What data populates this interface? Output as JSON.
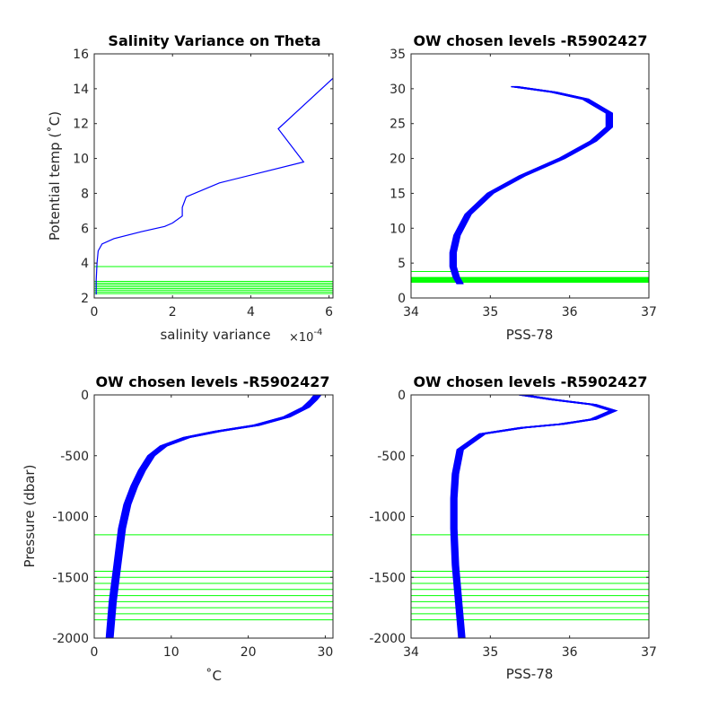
{
  "colors": {
    "profile": "#0000ff",
    "levels": "#00ff00",
    "axes": "#262626"
  },
  "chart_data": [
    {
      "type": "line",
      "title": "Salinity Variance on Theta",
      "xlabel": "salinity variance",
      "x_exponent_label": "×10",
      "x_exponent_power": "-4",
      "ylabel": "Potential temp (˚C)",
      "xlim": [
        0,
        6.1
      ],
      "ylim": [
        2,
        16
      ],
      "xticks": [
        0,
        2,
        4,
        6
      ],
      "xtick_labels": [
        "0",
        "2",
        "4",
        "6"
      ],
      "yticks": [
        2,
        4,
        6,
        8,
        10,
        12,
        14,
        16
      ],
      "ytick_labels": [
        "2",
        "4",
        "6",
        "8",
        "10",
        "12",
        "14",
        "16"
      ],
      "series": [
        {
          "x": [
            0.05,
            0.05,
            0.07,
            0.1,
            0.2,
            0.5,
            1.2,
            1.8,
            2.0,
            2.25,
            2.25,
            2.35,
            3.2,
            5.35,
            4.7,
            6.1
          ],
          "y": [
            2.2,
            3.0,
            4.0,
            4.7,
            5.1,
            5.4,
            5.8,
            6.1,
            6.3,
            6.7,
            7.2,
            7.8,
            8.6,
            9.8,
            11.7,
            14.6
          ]
        }
      ],
      "hlines": [
        3.8,
        2.95,
        2.85,
        2.75,
        2.65,
        2.55,
        2.45,
        2.35,
        2.25
      ]
    },
    {
      "type": "line",
      "title": "OW chosen levels -R5902427",
      "xlabel": "PSS-78",
      "ylabel": "",
      "xlim": [
        34,
        37
      ],
      "ylim": [
        0,
        35
      ],
      "xticks": [
        34,
        35,
        36,
        37
      ],
      "xtick_labels": [
        "34",
        "35",
        "36",
        "37"
      ],
      "yticks": [
        0,
        5,
        10,
        15,
        20,
        25,
        30,
        35
      ],
      "ytick_labels": [
        "0",
        "5",
        "10",
        "15",
        "20",
        "25",
        "30",
        "35"
      ],
      "series": [
        {
          "x": [
            34.62,
            34.57,
            34.53,
            34.53,
            34.58,
            34.72,
            35.0,
            35.4,
            35.9,
            36.3,
            36.5,
            36.5,
            36.2,
            35.8,
            35.3
          ],
          "y": [
            2.0,
            3.0,
            4.5,
            6.5,
            9.0,
            12.0,
            15.0,
            17.5,
            20.0,
            22.5,
            24.5,
            26.5,
            28.5,
            29.5,
            30.3
          ]
        }
      ],
      "spread": 0.08,
      "hlines": [
        3.8,
        2.95,
        2.85,
        2.75,
        2.65,
        2.55,
        2.45,
        2.35,
        2.25
      ]
    },
    {
      "type": "line",
      "title": "OW chosen levels -R5902427",
      "xlabel": "˚C",
      "ylabel": "Pressure (dbar)",
      "xlim": [
        0,
        31
      ],
      "ylim": [
        -2000,
        0
      ],
      "xticks": [
        0,
        10,
        20,
        30
      ],
      "xtick_labels": [
        "0",
        "10",
        "20",
        "30"
      ],
      "yticks": [
        -2000,
        -1500,
        -1000,
        -500,
        0
      ],
      "ytick_labels": [
        "-2000",
        "-1500",
        "-1000",
        "-500",
        "0"
      ],
      "series": [
        {
          "x": [
            2.0,
            2.4,
            3.0,
            3.6,
            4.3,
            5.2,
            6.2,
            7.4,
            9.0,
            12.0,
            16.0,
            21.0,
            25.0,
            27.5,
            28.5,
            29.0
          ],
          "y": [
            -2000,
            -1700,
            -1400,
            -1100,
            -900,
            -750,
            -620,
            -500,
            -420,
            -350,
            -300,
            -250,
            -180,
            -100,
            -40,
            0
          ]
        }
      ],
      "spread": 0.9,
      "hlines": [
        -1150,
        -1450,
        -1500,
        -1550,
        -1600,
        -1650,
        -1700,
        -1750,
        -1800,
        -1850
      ]
    },
    {
      "type": "line",
      "title": "OW chosen levels -R5902427",
      "xlabel": "PSS-78",
      "ylabel": "",
      "xlim": [
        34,
        37
      ],
      "ylim": [
        -2000,
        0
      ],
      "xticks": [
        34,
        35,
        36,
        37
      ],
      "xtick_labels": [
        "34",
        "35",
        "36",
        "37"
      ],
      "yticks": [
        -2000,
        -1500,
        -1000,
        -500,
        0
      ],
      "ytick_labels": [
        "-2000",
        "-1500",
        "-1000",
        "-500",
        "0"
      ],
      "series": [
        {
          "x": [
            34.64,
            34.6,
            34.56,
            34.54,
            34.54,
            34.56,
            34.62,
            34.9,
            35.4,
            35.9,
            36.3,
            36.55,
            36.3,
            35.8,
            35.4
          ],
          "y": [
            -2000,
            -1700,
            -1400,
            -1100,
            -850,
            -650,
            -450,
            -320,
            -270,
            -240,
            -200,
            -130,
            -80,
            -40,
            0
          ]
        }
      ],
      "spread": 0.08,
      "hlines": [
        -1150,
        -1450,
        -1500,
        -1550,
        -1600,
        -1650,
        -1700,
        -1750,
        -1800,
        -1850
      ]
    }
  ]
}
